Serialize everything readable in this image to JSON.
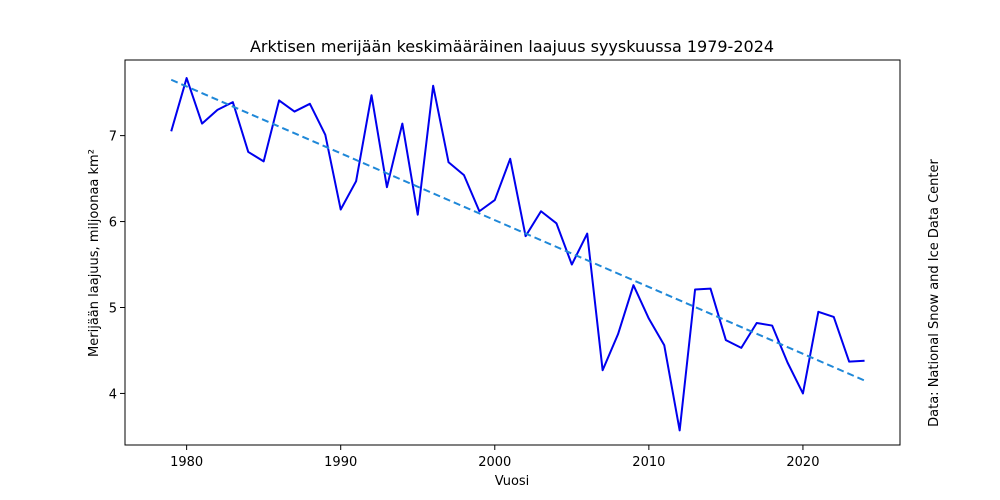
{
  "chart_data": {
    "type": "line",
    "title": "Arktisen merijään keskimääräinen laajuus syyskuussa 1979-2024",
    "xlabel": "Vuosi",
    "ylabel": "Merijään laajuus, miljoonaa km²",
    "source_note": "Data: National Snow and Ice Data Center",
    "xlim": [
      1976,
      2026.3
    ],
    "ylim": [
      3.4,
      7.88
    ],
    "x_ticks": [
      1980,
      1990,
      2000,
      2010,
      2020
    ],
    "y_ticks": [
      4,
      5,
      6,
      7
    ],
    "grid": false,
    "series": [
      {
        "style": "solid",
        "color": "#0000ee",
        "x": [
          1979,
          1980,
          1981,
          1982,
          1983,
          1984,
          1985,
          1986,
          1987,
          1988,
          1989,
          1990,
          1991,
          1992,
          1993,
          1994,
          1995,
          1996,
          1997,
          1998,
          1999,
          2000,
          2001,
          2002,
          2003,
          2004,
          2005,
          2006,
          2007,
          2008,
          2009,
          2010,
          2011,
          2012,
          2013,
          2014,
          2015,
          2016,
          2017,
          2018,
          2019,
          2020,
          2021,
          2022,
          2023,
          2024
        ],
        "y": [
          7.05,
          7.67,
          7.14,
          7.3,
          7.39,
          6.81,
          6.7,
          7.41,
          7.28,
          7.37,
          7.01,
          6.14,
          6.47,
          7.47,
          6.4,
          7.14,
          6.08,
          7.58,
          6.69,
          6.54,
          6.12,
          6.25,
          6.73,
          5.83,
          6.12,
          5.98,
          5.5,
          5.86,
          4.27,
          4.69,
          5.26,
          4.87,
          4.56,
          3.57,
          5.21,
          5.22,
          4.62,
          4.53,
          4.82,
          4.79,
          4.36,
          4.0,
          4.95,
          4.89,
          4.37,
          4.38
        ]
      },
      {
        "style": "dashed",
        "color": "#1f88d8",
        "x": [
          1979,
          2024
        ],
        "y": [
          7.65,
          4.15
        ]
      }
    ]
  }
}
